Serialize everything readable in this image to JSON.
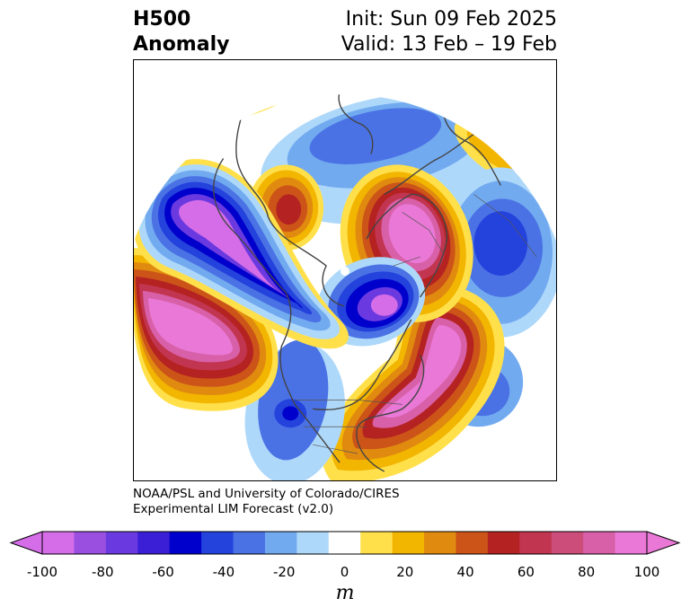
{
  "title": {
    "left_line1": "H500",
    "left_line2": "Anomaly",
    "right_line1": "Init: Sun 09 Feb 2025",
    "right_line2": "Valid: 13 Feb – 19 Feb"
  },
  "credit": {
    "line1": "NOAA/PSL and University of Colorado/CIRES",
    "line2": "Experimental LIM Forecast (v2.0)"
  },
  "colorbar": {
    "unit": "m",
    "ticks": [
      "-100",
      "-80",
      "-60",
      "-40",
      "-20",
      "0",
      "20",
      "40",
      "60",
      "80",
      "100"
    ],
    "levels": [
      -100,
      -90,
      -80,
      -70,
      -60,
      -50,
      -40,
      -30,
      -20,
      -10,
      10,
      20,
      30,
      40,
      50,
      60,
      70,
      80,
      90,
      100
    ],
    "colors": [
      "#d56de8",
      "#9b4fe0",
      "#6a3ae0",
      "#3a1fd6",
      "#0000cc",
      "#2442dc",
      "#4a72e4",
      "#72aaf0",
      "#aed8fa",
      "#ffffff",
      "#ffe04a",
      "#f2b500",
      "#e08a10",
      "#cc5418",
      "#b52222",
      "#c23550",
      "#cc4c7a",
      "#d860a8",
      "#e978d6"
    ],
    "under_color": "#d56de8",
    "over_color": "#e978d6"
  },
  "map": {
    "projection": "north-polar-stereographic",
    "variable": "500 hPa geopotential height anomaly",
    "anomaly_centers": [
      {
        "sign": "negative",
        "region": "North Pacific / Gulf of Alaska",
        "max_m": -100
      },
      {
        "sign": "positive",
        "region": "Subtropical eastern Pacific",
        "max_m": 100
      },
      {
        "sign": "positive",
        "region": "Western Europe / Scandinavia",
        "max_m": 100
      },
      {
        "sign": "positive",
        "region": "Eastern North America / western Atlantic",
        "max_m": 100
      },
      {
        "sign": "negative",
        "region": "Canadian Arctic / Hudson Bay",
        "max_m": -80
      },
      {
        "sign": "positive",
        "region": "Far East Asia",
        "max_m": 60
      },
      {
        "sign": "negative",
        "region": "Central Asia",
        "max_m": -50
      },
      {
        "sign": "negative",
        "region": "Western United States",
        "max_m": -60
      }
    ]
  }
}
